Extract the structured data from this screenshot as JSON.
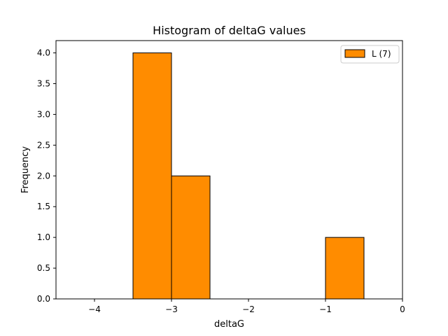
{
  "chart_data": {
    "type": "bar",
    "title": "Histogram of deltaG values",
    "xlabel": "deltaG",
    "ylabel": "Frequency",
    "xlim": [
      -4.5,
      0
    ],
    "ylim": [
      0,
      4.2
    ],
    "x_ticks": [
      -4,
      -3,
      -2,
      -1,
      0
    ],
    "x_tick_labels": [
      "−4",
      "−3",
      "−2",
      "−1",
      "0"
    ],
    "y_ticks": [
      0,
      0.5,
      1,
      1.5,
      2,
      2.5,
      3,
      3.5,
      4
    ],
    "y_tick_labels": [
      "0.0",
      "0.5",
      "1.0",
      "1.5",
      "2.0",
      "2.5",
      "3.0",
      "3.5",
      "4.0"
    ],
    "bins": [
      {
        "x0": -3.5,
        "x1": -3.0,
        "count": 4
      },
      {
        "x0": -3.0,
        "x1": -2.5,
        "count": 2
      },
      {
        "x0": -1.0,
        "x1": -0.5,
        "count": 1
      }
    ],
    "series": [
      {
        "name": "L (7)",
        "color": "#ff8c00"
      }
    ],
    "edge_color": "#000000",
    "legend": "top-right",
    "grid": false
  }
}
